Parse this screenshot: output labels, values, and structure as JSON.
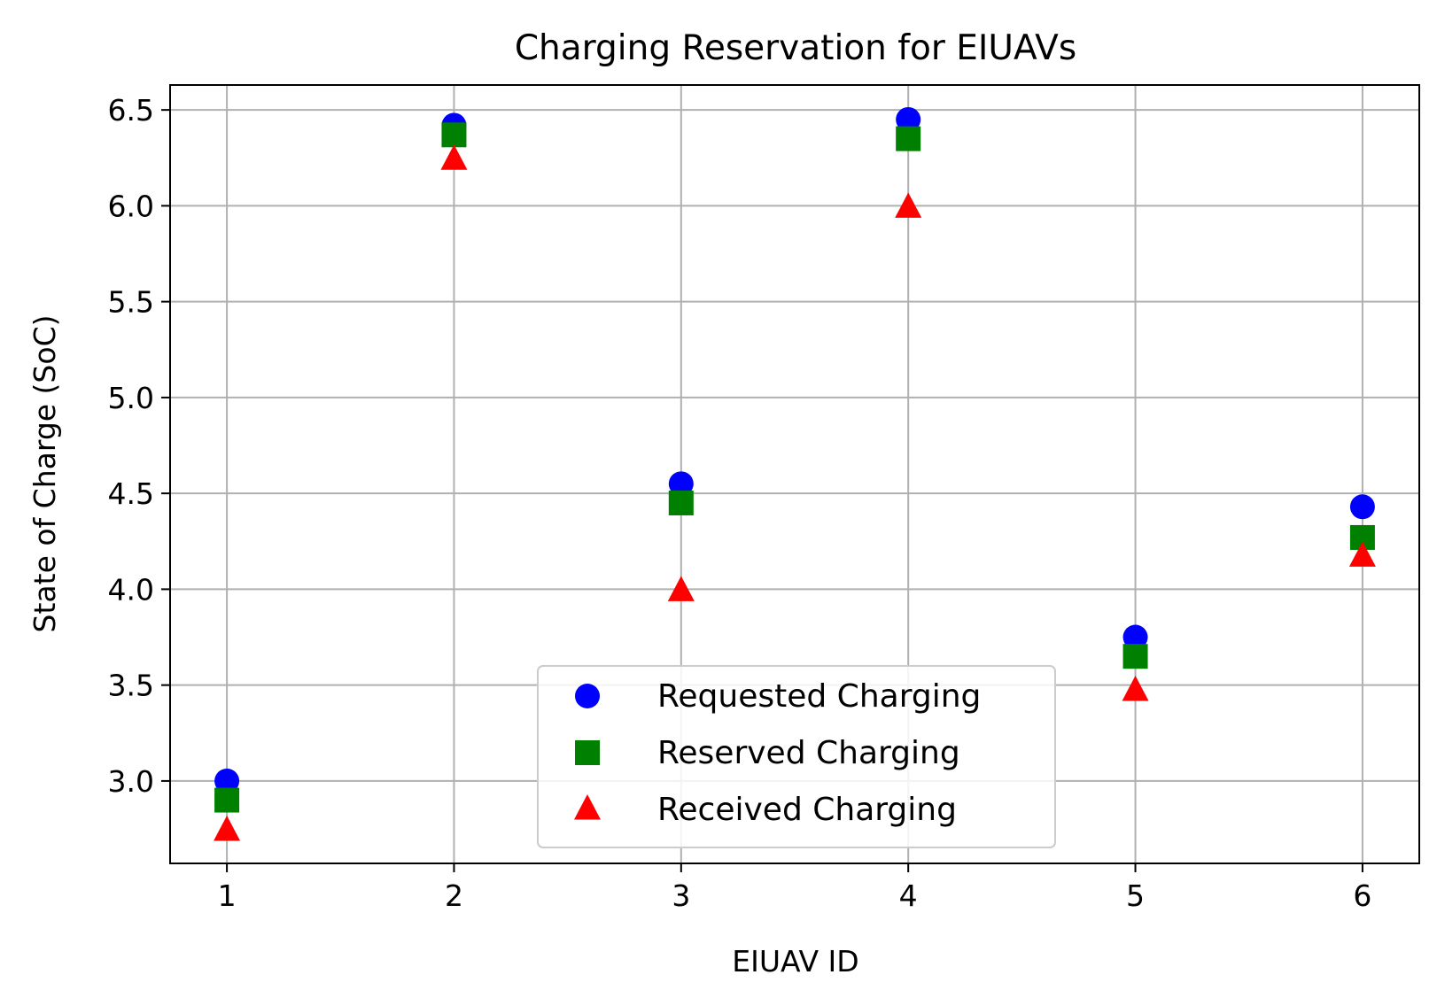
{
  "chart_data": {
    "type": "scatter",
    "title": "Charging Reservation for EIUAVs",
    "xlabel": "EIUAV ID",
    "ylabel": "State of Charge (SoC)",
    "x": [
      1,
      2,
      3,
      4,
      5,
      6
    ],
    "xlim": [
      0.75,
      6.25
    ],
    "ylim": [
      2.57,
      6.63
    ],
    "xticks": [
      "1",
      "2",
      "3",
      "4",
      "5",
      "6"
    ],
    "yticks": [
      "3.0",
      "3.5",
      "4.0",
      "4.5",
      "5.0",
      "5.5",
      "6.0",
      "6.5"
    ],
    "grid": true,
    "legend_position": "lower-center",
    "series": [
      {
        "name": "Requested Charging",
        "marker": "circle",
        "color": "#0000ff",
        "values": [
          3.0,
          6.42,
          4.55,
          6.45,
          3.75,
          4.43
        ]
      },
      {
        "name": "Reserved Charging",
        "marker": "square",
        "color": "#008000",
        "values": [
          2.9,
          6.37,
          4.45,
          6.35,
          3.65,
          4.27
        ]
      },
      {
        "name": "Received Charging",
        "marker": "triangle",
        "color": "#ff0000",
        "values": [
          2.75,
          6.25,
          4.0,
          6.0,
          3.48,
          4.18
        ]
      }
    ]
  }
}
